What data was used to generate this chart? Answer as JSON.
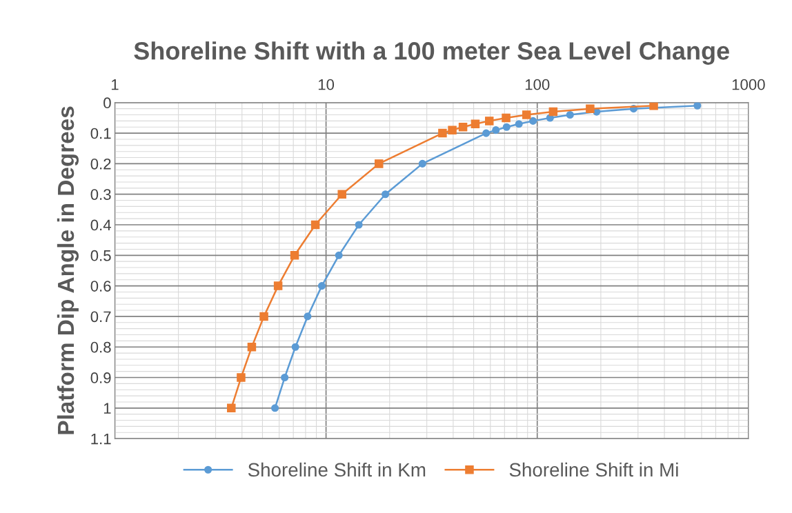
{
  "chart_data": {
    "type": "line",
    "title": "Shoreline Shift with a 100 meter Sea Level Change",
    "ylabel": "Platform Dip Angle in Degrees",
    "log": "x",
    "xlim": [
      1,
      1000
    ],
    "xticks": [
      1,
      10,
      100,
      1000
    ],
    "ylim": [
      1.1,
      0
    ],
    "yticks": [
      0,
      0.1,
      0.2,
      0.3,
      0.4,
      0.5,
      0.6,
      0.7,
      0.8,
      0.9,
      1,
      1.1
    ],
    "grid": true,
    "legend": "bottom",
    "series": [
      {
        "name": "Shoreline Shift in Km",
        "color": "#5b9bd5",
        "marker": "circle",
        "x": [
          573,
          286,
          191,
          143,
          115,
          95.5,
          81.9,
          71.6,
          63.7,
          57.3,
          28.6,
          19.1,
          14.3,
          11.5,
          9.55,
          8.18,
          7.16,
          6.37,
          5.73
        ],
        "values": [
          0.01,
          0.02,
          0.03,
          0.04,
          0.05,
          0.06,
          0.07,
          0.08,
          0.09,
          0.1,
          0.2,
          0.3,
          0.4,
          0.5,
          0.6,
          0.7,
          0.8,
          0.9,
          1
        ]
      },
      {
        "name": "Shoreline Shift in Mi",
        "color": "#ed7d31",
        "marker": "square",
        "x": [
          356,
          178,
          119,
          89,
          71.2,
          59.3,
          50.9,
          44.5,
          39.6,
          35.6,
          17.8,
          11.9,
          8.9,
          7.1,
          5.93,
          5.08,
          4.45,
          3.96,
          3.56
        ],
        "values": [
          0.01,
          0.02,
          0.03,
          0.04,
          0.05,
          0.06,
          0.07,
          0.08,
          0.09,
          0.1,
          0.2,
          0.3,
          0.4,
          0.5,
          0.6,
          0.7,
          0.8,
          0.9,
          1
        ]
      }
    ]
  }
}
